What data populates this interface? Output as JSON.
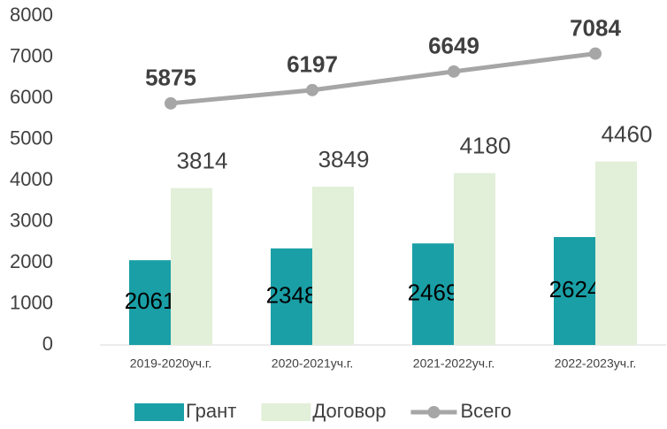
{
  "chart_data": {
    "type": "bar",
    "categories": [
      "2019-2020уч.г.",
      "2020-2021уч.г.",
      "2021-2022уч.г.",
      "2022-2023уч.г."
    ],
    "series": [
      {
        "name": "Грант",
        "color": "#1a9fa6",
        "values": [
          2061,
          2348,
          2469,
          2624
        ]
      },
      {
        "name": "Договор",
        "color": "#e2efd9",
        "values": [
          3814,
          3849,
          4180,
          4460
        ]
      },
      {
        "name": "Всего",
        "type": "line",
        "color": "#a6a6a6",
        "values": [
          5875,
          6197,
          6649,
          7084
        ]
      }
    ],
    "ylim": [
      0,
      8000
    ],
    "yticks": [
      0,
      1000,
      2000,
      3000,
      4000,
      5000,
      6000,
      7000,
      8000
    ],
    "grid": false,
    "legend": "bottom"
  }
}
